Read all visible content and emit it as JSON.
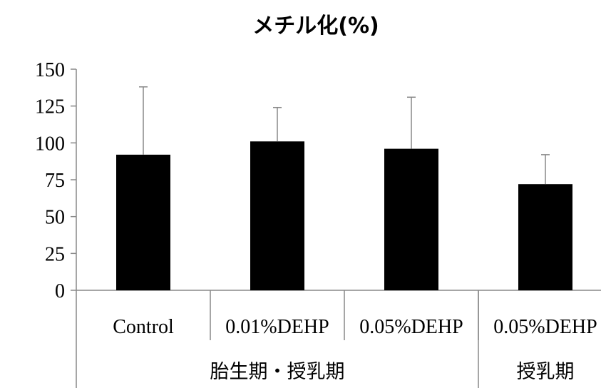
{
  "chart_data": {
    "type": "bar",
    "title": "メチル化(%)",
    "categories": [
      "Control",
      "0.01%DEHP",
      "0.05%DEHP",
      "0.05%DEHP"
    ],
    "groups": [
      {
        "label": "胎生期・授乳期",
        "categories": [
          "Control",
          "0.01%DEHP",
          "0.05%DEHP"
        ]
      },
      {
        "label": "授乳期",
        "categories": [
          "0.05%DEHP"
        ]
      }
    ],
    "series": [
      {
        "values": [
          92,
          101,
          96,
          72
        ],
        "errors": [
          46,
          23,
          35,
          20
        ]
      }
    ],
    "ylim": [
      0,
      150
    ],
    "yticks": [
      0,
      25,
      50,
      75,
      100,
      125,
      150
    ],
    "xlabel": "",
    "ylabel": "",
    "grid": false,
    "colors": {
      "bar": "#000000",
      "axis": "#888888"
    }
  }
}
